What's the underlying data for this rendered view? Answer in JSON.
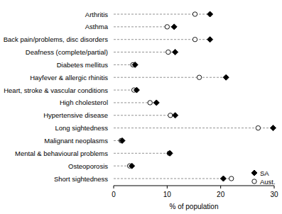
{
  "chart_data": {
    "type": "scatter",
    "orientation": "horizontal",
    "categories": [
      "Arthritis",
      "Asthma",
      "Back pain/problems, disc disorders",
      "Deafness (complete/partial)",
      "Diabetes mellitus",
      "Hayfever & allergic rhinitis",
      "Heart, stroke & vascular conditions",
      "High cholesterol",
      "Hypertensive disease",
      "Long sightedness",
      "Malignant neoplasms",
      "Mental & behavioural problems",
      "Osteoporosis",
      "Short sightedness"
    ],
    "series": [
      {
        "name": "SA",
        "color": "#000000",
        "marker": "diamond",
        "values": [
          18,
          11.3,
          18,
          11.5,
          4,
          21,
          4.3,
          8,
          11.5,
          29.8,
          1.6,
          10.5,
          3.4,
          20.5
        ]
      },
      {
        "name": "Aust.",
        "color": "#000000",
        "marker": "open-circle",
        "values": [
          15.2,
          10,
          15.2,
          10.2,
          3.6,
          16,
          3.8,
          6.8,
          10.6,
          27,
          1.4,
          10.4,
          3,
          22
        ]
      }
    ],
    "xlabel": "% of population",
    "xlim": [
      0,
      30
    ],
    "xticks": [
      0,
      10,
      20,
      30
    ],
    "legend": "lower right"
  }
}
